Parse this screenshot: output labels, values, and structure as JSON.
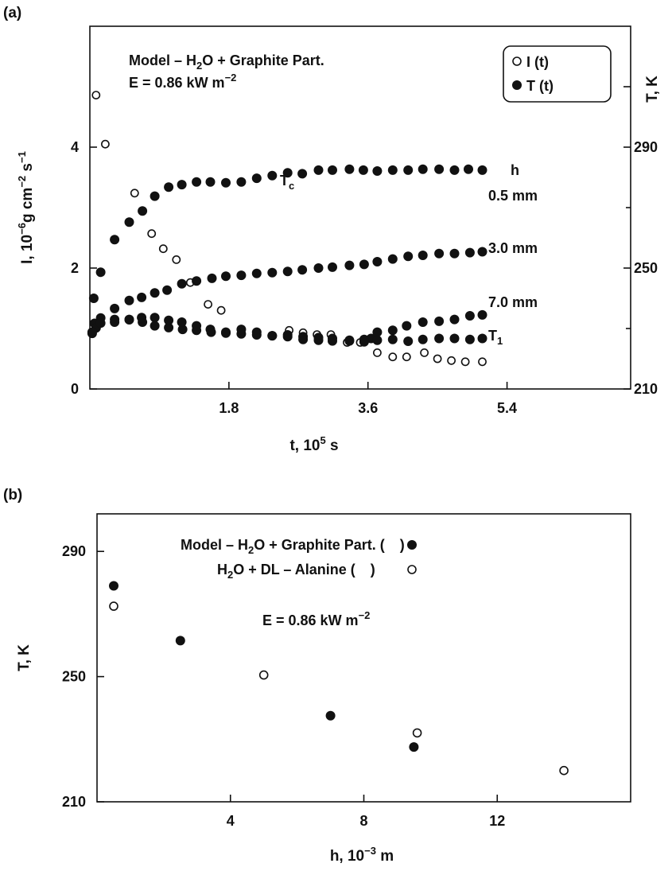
{
  "chart_data": [
    {
      "panel": "(a)",
      "type": "scatter",
      "xlabel": "t, 10",
      "xlabel_sup": "5",
      "xlabel_tail": " s",
      "ylabel_left": "I, 10",
      "ylabel_left_sup1": "−6",
      "ylabel_left_mid": "g cm",
      "ylabel_left_sup2": "−2",
      "ylabel_left_mid2": " s",
      "ylabel_left_sup3": "−1",
      "ylabel_right": "T, K",
      "xlim": [
        0,
        7.0
      ],
      "ylim_left": [
        0,
        6.0
      ],
      "ylim_right": [
        210,
        330
      ],
      "xticks": [
        1.8,
        3.6,
        5.4
      ],
      "yticks_left": [
        0,
        2,
        4
      ],
      "yticks_right": [
        210,
        250,
        290
      ],
      "grid": false,
      "legend_position": "top-right",
      "legend": [
        {
          "marker": "open-circle",
          "label": "I (t)"
        },
        {
          "marker": "filled-circle",
          "label": "T (t)"
        }
      ],
      "model_line1": "Model – H",
      "model_sub": "2",
      "model_line1_tail": "O + Graphite Part.",
      "energy_line": "E = 0.86 kW  m",
      "energy_sup": "−2",
      "annotations": {
        "tc": "T",
        "tc_sub": "c",
        "h_header": "h",
        "h1": "0.5 mm",
        "h2": "3.0 mm",
        "h3": "7.0 mm",
        "t1": "T",
        "t1_sub": "1"
      },
      "series": [
        {
          "marker": "open-circle",
          "axis": "left",
          "points": [
            [
              0.08,
              4.86
            ],
            [
              0.2,
              4.05
            ],
            [
              0.58,
              3.24
            ],
            [
              0.8,
              2.57
            ],
            [
              0.95,
              2.32
            ],
            [
              1.12,
              2.14
            ],
            [
              1.3,
              1.76
            ],
            [
              1.53,
              1.4
            ],
            [
              1.7,
              1.3
            ],
            [
              2.58,
              0.97
            ],
            [
              2.76,
              0.93
            ],
            [
              2.94,
              0.9
            ],
            [
              3.12,
              0.9
            ],
            [
              3.33,
              0.77
            ],
            [
              3.5,
              0.77
            ],
            [
              3.72,
              0.6
            ],
            [
              3.92,
              0.53
            ],
            [
              4.1,
              0.53
            ],
            [
              4.33,
              0.6
            ],
            [
              4.5,
              0.5
            ],
            [
              4.68,
              0.47
            ],
            [
              4.86,
              0.45
            ],
            [
              5.08,
              0.45
            ]
          ]
        },
        {
          "marker": "filled-circle",
          "axis": "right",
          "name": "0.5 mm",
          "points": [
            [
              0.05,
              240.0
            ],
            [
              0.14,
              248.6
            ],
            [
              0.32,
              259.4
            ],
            [
              0.51,
              265.2
            ],
            [
              0.68,
              268.9
            ],
            [
              0.84,
              273.8
            ],
            [
              1.02,
              276.8
            ],
            [
              1.19,
              277.6
            ],
            [
              1.38,
              278.5
            ],
            [
              1.56,
              278.5
            ],
            [
              1.76,
              278.2
            ],
            [
              1.96,
              278.5
            ],
            [
              2.16,
              279.7
            ],
            [
              2.36,
              280.6
            ],
            [
              2.56,
              281.5
            ],
            [
              2.75,
              281.2
            ],
            [
              2.96,
              282.4
            ],
            [
              3.14,
              282.4
            ],
            [
              3.36,
              282.7
            ],
            [
              3.54,
              282.4
            ],
            [
              3.72,
              282.1
            ],
            [
              3.92,
              282.4
            ],
            [
              4.12,
              282.4
            ],
            [
              4.31,
              282.7
            ],
            [
              4.52,
              282.7
            ],
            [
              4.72,
              282.4
            ],
            [
              4.9,
              282.7
            ],
            [
              5.08,
              282.4
            ]
          ]
        },
        {
          "marker": "filled-circle",
          "axis": "right",
          "name": "3.0 mm",
          "points": [
            [
              0.06,
              231.7
            ],
            [
              0.14,
              233.5
            ],
            [
              0.32,
              236.6
            ],
            [
              0.51,
              239.3
            ],
            [
              0.67,
              240.3
            ],
            [
              0.84,
              241.8
            ],
            [
              1.0,
              242.7
            ],
            [
              1.19,
              244.8
            ],
            [
              1.38,
              245.7
            ],
            [
              1.58,
              246.6
            ],
            [
              1.76,
              247.3
            ],
            [
              1.96,
              247.6
            ],
            [
              2.16,
              248.2
            ],
            [
              2.36,
              248.5
            ],
            [
              2.56,
              248.9
            ],
            [
              2.75,
              249.4
            ],
            [
              2.96,
              250.0
            ],
            [
              3.14,
              250.3
            ],
            [
              3.36,
              250.9
            ],
            [
              3.55,
              251.2
            ],
            [
              3.72,
              252.1
            ],
            [
              3.92,
              253.0
            ],
            [
              4.12,
              253.9
            ],
            [
              4.31,
              254.2
            ],
            [
              4.52,
              254.8
            ],
            [
              4.72,
              254.8
            ],
            [
              4.92,
              255.1
            ],
            [
              5.08,
              255.4
            ]
          ]
        },
        {
          "marker": "filled-circle",
          "axis": "right",
          "name": "7.0 mm",
          "points": [
            [
              0.03,
              228.4
            ],
            [
              0.08,
              230.2
            ],
            [
              0.14,
              231.8
            ],
            [
              0.32,
              233.0
            ],
            [
              0.51,
              232.9
            ],
            [
              0.68,
              232.1
            ],
            [
              0.84,
              230.9
            ],
            [
              1.02,
              230.3
            ],
            [
              1.2,
              229.7
            ],
            [
              1.38,
              229.4
            ],
            [
              1.57,
              228.8
            ],
            [
              1.76,
              228.5
            ],
            [
              1.96,
              228.2
            ],
            [
              2.16,
              227.9
            ],
            [
              2.36,
              227.6
            ],
            [
              2.56,
              227.3
            ],
            [
              2.76,
              226.4
            ],
            [
              2.96,
              226.1
            ],
            [
              3.14,
              225.9
            ],
            [
              3.36,
              225.9
            ],
            [
              3.55,
              225.6
            ],
            [
              3.64,
              226.7
            ],
            [
              3.72,
              228.8
            ],
            [
              3.92,
              229.4
            ],
            [
              4.1,
              230.9
            ],
            [
              4.31,
              232.1
            ],
            [
              4.52,
              232.4
            ],
            [
              4.72,
              233.0
            ],
            [
              4.92,
              234.2
            ],
            [
              5.08,
              234.5
            ]
          ]
        },
        {
          "marker": "filled-circle",
          "axis": "right",
          "name": "T1",
          "points": [
            [
              0.03,
              228.8
            ],
            [
              0.32,
              232.1
            ],
            [
              0.51,
              233.0
            ],
            [
              0.67,
              233.6
            ],
            [
              0.84,
              233.6
            ],
            [
              1.02,
              232.7
            ],
            [
              1.19,
              232.1
            ],
            [
              1.38,
              230.9
            ],
            [
              1.56,
              229.7
            ],
            [
              1.76,
              228.8
            ],
            [
              1.96,
              229.7
            ],
            [
              2.16,
              228.8
            ],
            [
              2.36,
              227.6
            ],
            [
              2.56,
              227.9
            ],
            [
              2.76,
              227.3
            ],
            [
              2.96,
              227.0
            ],
            [
              3.14,
              226.7
            ],
            [
              3.36,
              226.1
            ],
            [
              3.55,
              226.4
            ],
            [
              3.72,
              226.1
            ],
            [
              3.92,
              226.4
            ],
            [
              4.12,
              225.8
            ],
            [
              4.31,
              226.4
            ],
            [
              4.52,
              226.7
            ],
            [
              4.72,
              226.7
            ],
            [
              4.92,
              226.4
            ],
            [
              5.08,
              226.7
            ]
          ]
        }
      ]
    },
    {
      "panel": "(b)",
      "type": "scatter",
      "xlabel": "h, 10",
      "xlabel_sup": "−3",
      "xlabel_tail": " m",
      "ylabel": "T, K",
      "xlim": [
        0,
        16
      ],
      "ylim": [
        210,
        302
      ],
      "xticks": [
        4,
        8,
        12
      ],
      "yticks": [
        210,
        250,
        290
      ],
      "grid": false,
      "legend_line1": "Model – H",
      "legend_line1_sub": "2",
      "legend_line1_tail": "O + Graphite Part.  ( ",
      "legend_line1_close": " )",
      "legend_line2": "H",
      "legend_line2_sub": "2",
      "legend_line2_tail": "O + DL – Alanine  ( ",
      "legend_line2_close": " )",
      "energy_line": "E = 0.86 kW  m",
      "energy_sup": "−2",
      "series": [
        {
          "marker": "filled-circle",
          "points": [
            [
              0.5,
              279
            ],
            [
              2.5,
              261.5
            ],
            [
              7.0,
              237.5
            ],
            [
              9.5,
              227.5
            ]
          ]
        },
        {
          "marker": "open-circle",
          "points": [
            [
              0.5,
              272.5
            ],
            [
              5.0,
              250.5
            ],
            [
              9.6,
              232
            ],
            [
              14.0,
              220
            ]
          ]
        }
      ]
    }
  ]
}
